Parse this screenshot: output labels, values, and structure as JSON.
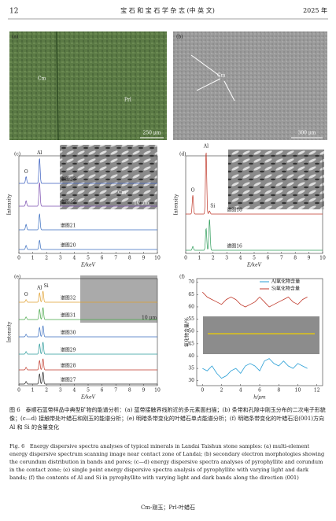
{
  "header": {
    "page": "12",
    "journal": "宝 石 和 宝 石 学 杂 志 (中 英 文)",
    "year": "2025 年"
  },
  "panels": {
    "a": {
      "label": "(a)",
      "texts": [
        "Cm",
        "Prl"
      ],
      "scale": "250 μm"
    },
    "b": {
      "label": "(b)",
      "texts": [
        "Cm"
      ],
      "scale": "300 μm"
    },
    "c": {
      "label": "(c)",
      "xlabel": "E/keV",
      "ylabel": "Intensity",
      "xlim": [
        0,
        10
      ],
      "xticks": [
        0,
        1,
        2,
        3,
        4,
        5,
        6,
        7,
        8,
        9,
        10
      ],
      "elements": [
        {
          "symbol": "O",
          "x": 0.52
        },
        {
          "symbol": "Al",
          "x": 1.49
        }
      ],
      "spectra": [
        {
          "name": "谱图23",
          "color": "#3b5fc0",
          "heights": [
            25,
            95
          ]
        },
        {
          "name": "谱图22",
          "color": "#7b4fb0",
          "heights": [
            20,
            90
          ]
        },
        {
          "name": "谱图21",
          "color": "#3b6fc0",
          "heights": [
            20,
            60
          ]
        },
        {
          "name": "谱图20",
          "color": "#3b6fc0",
          "heights": [
            15,
            35
          ]
        }
      ],
      "inset": {
        "texts": [
          "Cm"
        ],
        "scale": "10 μm"
      }
    },
    "d": {
      "label": "(d)",
      "xlabel": "E/keV",
      "ylabel": "Intensity",
      "xlim": [
        0,
        10
      ],
      "xticks": [
        0,
        1,
        2,
        3,
        4,
        5,
        6,
        7,
        8,
        9,
        10
      ],
      "elements": [
        {
          "symbol": "O",
          "x": 0.52
        },
        {
          "symbol": "Al",
          "x": 1.49
        },
        {
          "symbol": "Si",
          "x": 1.74
        }
      ],
      "spectra": [
        {
          "name": "谱图18",
          "color": "#c0392b",
          "heights": [
            30,
            100,
            5
          ]
        },
        {
          "name": "谱图16",
          "color": "#2e9c5a",
          "heights": [
            6,
            35,
            50
          ]
        }
      ],
      "inset": {
        "texts": [],
        "scale": ""
      }
    },
    "e": {
      "label": "(e)",
      "xlabel": "E/keV",
      "ylabel": "Intensity",
      "xlim": [
        0,
        10
      ],
      "xticks": [
        0,
        1,
        2,
        3,
        4,
        5,
        6,
        7,
        8,
        9,
        10
      ],
      "elements": [
        {
          "symbol": "O",
          "x": 0.52
        },
        {
          "symbol": "Al",
          "x": 1.49
        },
        {
          "symbol": "Si",
          "x": 1.74
        }
      ],
      "spectra": [
        {
          "name": "谱图32",
          "color": "#e0a030",
          "heights": [
            15,
            55,
            65
          ]
        },
        {
          "name": "谱图31",
          "color": "#4aa84a",
          "heights": [
            15,
            60,
            70
          ]
        },
        {
          "name": "谱图30",
          "color": "#3b6fc0",
          "heights": [
            15,
            55,
            65
          ]
        },
        {
          "name": "谱图29",
          "color": "#2a9a9a",
          "heights": [
            15,
            60,
            70
          ]
        },
        {
          "name": "谱图28",
          "color": "#c0392b",
          "heights": [
            15,
            55,
            65
          ]
        },
        {
          "name": "谱图27",
          "color": "#222222",
          "heights": [
            15,
            60,
            70
          ]
        }
      ],
      "inset": {
        "texts": [],
        "scale": "10 μm"
      }
    },
    "f": {
      "label": "(f)",
      "type": "line",
      "xlabel": "h/μm",
      "ylabel": "氧化物含量/%",
      "xlim": [
        -0.6,
        12.6
      ],
      "ylim": [
        28,
        71.5
      ],
      "xticks": [
        0,
        2,
        4,
        6,
        8,
        10,
        12
      ],
      "yticks": [
        30,
        35,
        40,
        45,
        50,
        55,
        60,
        65,
        70
      ],
      "x": [
        0,
        0.5,
        1,
        1.5,
        2,
        2.5,
        3,
        3.5,
        4,
        4.5,
        5,
        5.5,
        6,
        6.5,
        7,
        7.5,
        8,
        8.5,
        9,
        9.5,
        10,
        10.5,
        11
      ],
      "series": [
        {
          "name": "Al氧化物含量",
          "color": "#2a9fd6",
          "values": [
            35,
            34,
            36,
            33,
            31,
            32,
            34,
            35,
            33,
            36,
            37,
            36,
            34,
            38,
            39,
            37,
            36,
            38,
            36,
            35,
            37,
            36,
            35
          ]
        },
        {
          "name": "Si氧化物含量",
          "color": "#c0392b",
          "values": [
            66,
            64,
            63,
            62,
            61,
            63,
            64,
            63,
            61,
            60,
            61,
            62,
            64,
            62,
            60,
            61,
            62,
            63,
            64,
            62,
            61,
            63,
            64
          ]
        }
      ]
    }
  },
  "caption": {
    "zh": "图 6　泰顺石蓝带样品中典型矿物的能谱分析：(a) 蓝带接触界线附近的多元素面扫描；(b) 条带和孔隙中刚玉分布的二次电子形貌像；(c—d) 接触带处叶蜡石和刚玉的能谱分析；(e) 明暗条带变化的叶蜡石单点能谱分析；(f) 明暗条带变化的叶蜡石沿(001)方向 Al 和 Si 的含量变化",
    "en": "Fig. 6　Energy dispersive spectra analyses of typical minerals in Landai Taishun stone samples: (a) multi-element energy dispersive spectrum scanning image near contact zone of Landai; (b) secondary electron morphologies showing the corundum distribution in bands and pores; (c—d) energy dispersive spectra analyses of pyrophyllite and corundum in the contact zone; (e) single point energy dispersive spectra analysis of pyrophyllite with varying light and dark bands; (f) the contents of Al and Si in pyrophyllite with varying light and dark bands along the direction (001)",
    "note": "Cm-刚玉；Prl-叶蜡石"
  }
}
